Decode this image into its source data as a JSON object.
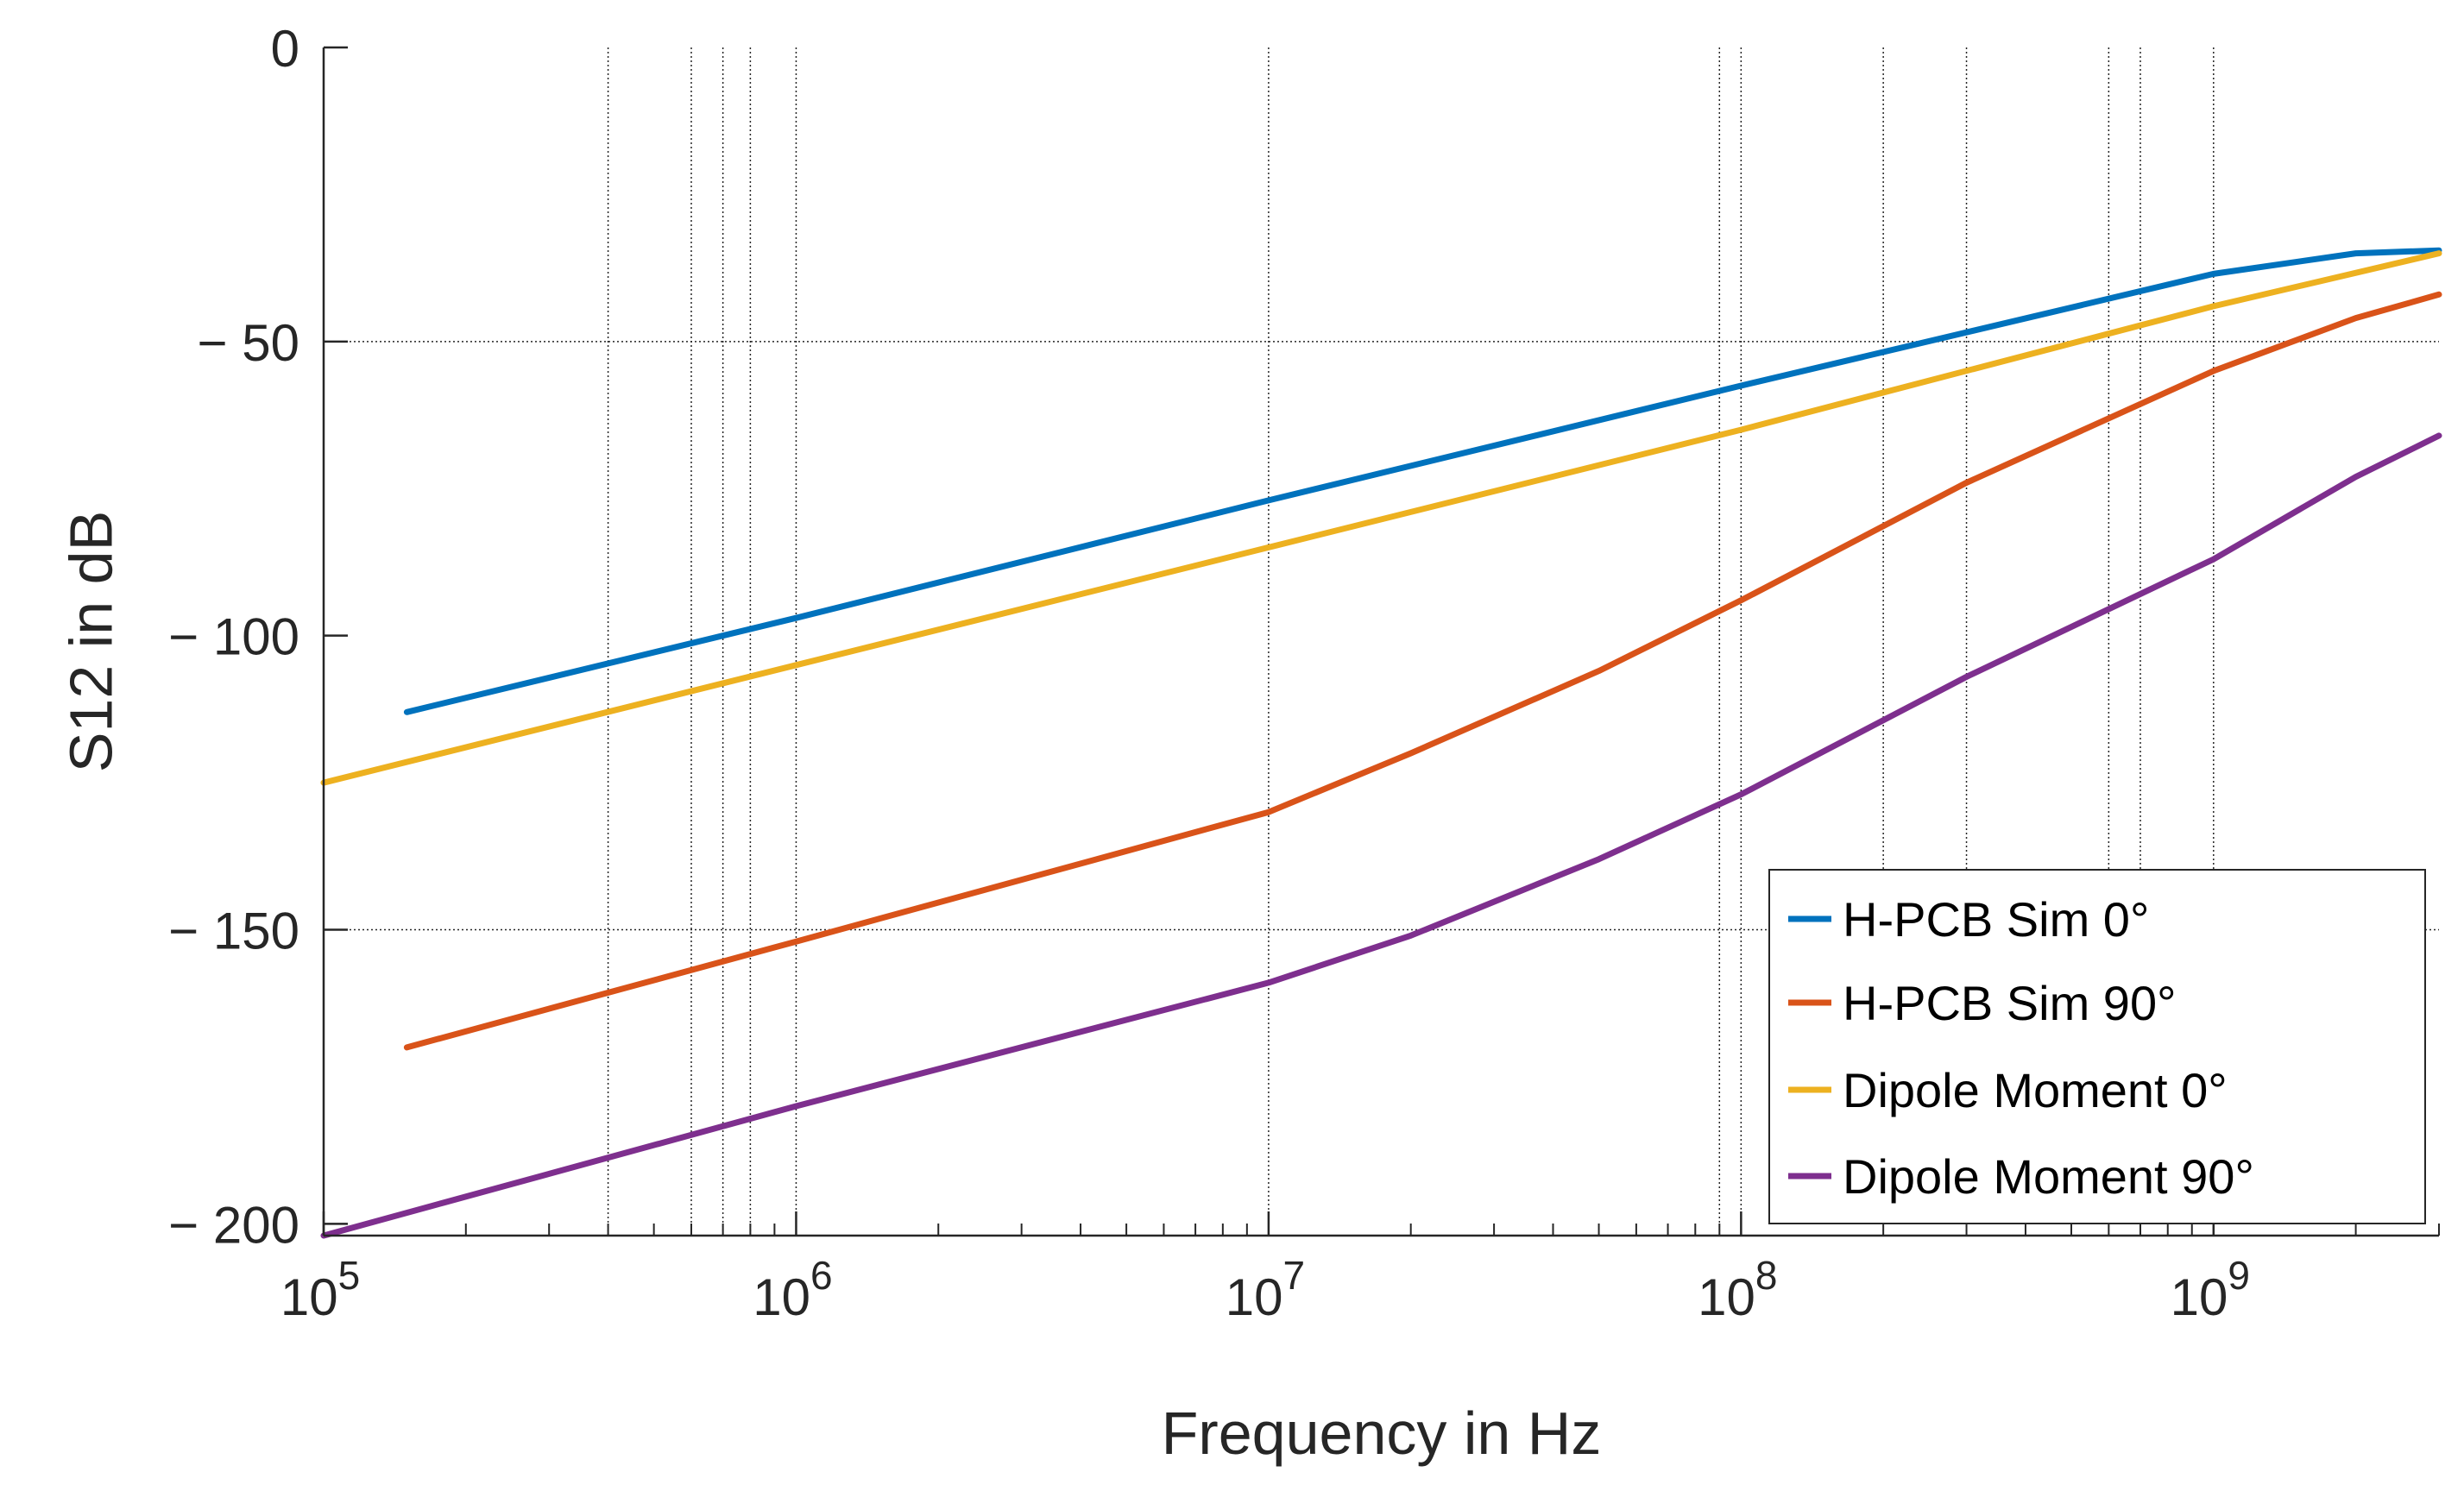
{
  "chart_data": {
    "type": "line",
    "title": "",
    "xlabel": "Frequency in Hz",
    "ylabel": "S12 in dB",
    "xscale": "log",
    "xlim": [
      100000,
      3000000000
    ],
    "ylim": [
      -202,
      0
    ],
    "yticks": [
      {
        "value": 0,
        "label": "0"
      },
      {
        "value": -50,
        "label": "− 50"
      },
      {
        "value": -100,
        "label": "− 100"
      },
      {
        "value": -150,
        "label": "− 150"
      },
      {
        "value": -200,
        "label": "− 200"
      }
    ],
    "xticks": [
      {
        "value": 100000,
        "base": "10",
        "exp": "5"
      },
      {
        "value": 1000000,
        "base": "10",
        "exp": "6"
      },
      {
        "value": 10000000,
        "base": "10",
        "exp": "7"
      },
      {
        "value": 100000000,
        "base": "10",
        "exp": "8"
      },
      {
        "value": 1000000000,
        "base": "10",
        "exp": "9"
      }
    ],
    "grid_y": [
      -50,
      -150
    ],
    "grid_x": [
      400000,
      600000,
      700000,
      800000,
      1000000,
      10000000,
      90000000,
      100000000,
      200000000,
      300000000,
      600000000,
      700000000,
      1000000000
    ],
    "legend_position": "bottom-right",
    "series": [
      {
        "name": "H-PCB Sim 0°",
        "color": "#0072BD",
        "x": [
          150000,
          1000000,
          10000000,
          100000000,
          1000000000,
          2000000000,
          3000000000
        ],
        "y": [
          -113,
          -97,
          -77,
          -57.5,
          -38.5,
          -35,
          -34.5
        ]
      },
      {
        "name": "H-PCB Sim 90°",
        "color": "#D95319",
        "x": [
          150000,
          1000000,
          10000000,
          20000000,
          50000000,
          100000000,
          300000000,
          1000000000,
          2000000000,
          3000000000
        ],
        "y": [
          -170,
          -152,
          -130,
          -120,
          -106,
          -94,
          -74,
          -55,
          -46,
          -42
        ]
      },
      {
        "name": "Dipole Moment 0°",
        "color": "#EDB120",
        "x": [
          100000,
          1000000,
          10000000,
          100000000,
          1000000000,
          3000000000
        ],
        "y": [
          -125,
          -105,
          -85,
          -65,
          -44,
          -35
        ]
      },
      {
        "name": "Dipole Moment 90°",
        "color": "#7E2F8E",
        "x": [
          100000,
          1000000,
          10000000,
          20000000,
          50000000,
          100000000,
          300000000,
          1000000000,
          2000000000,
          3000000000
        ],
        "y": [
          -202,
          -180,
          -159,
          -151,
          -138,
          -127,
          -107,
          -87,
          -73,
          -66
        ]
      }
    ]
  }
}
